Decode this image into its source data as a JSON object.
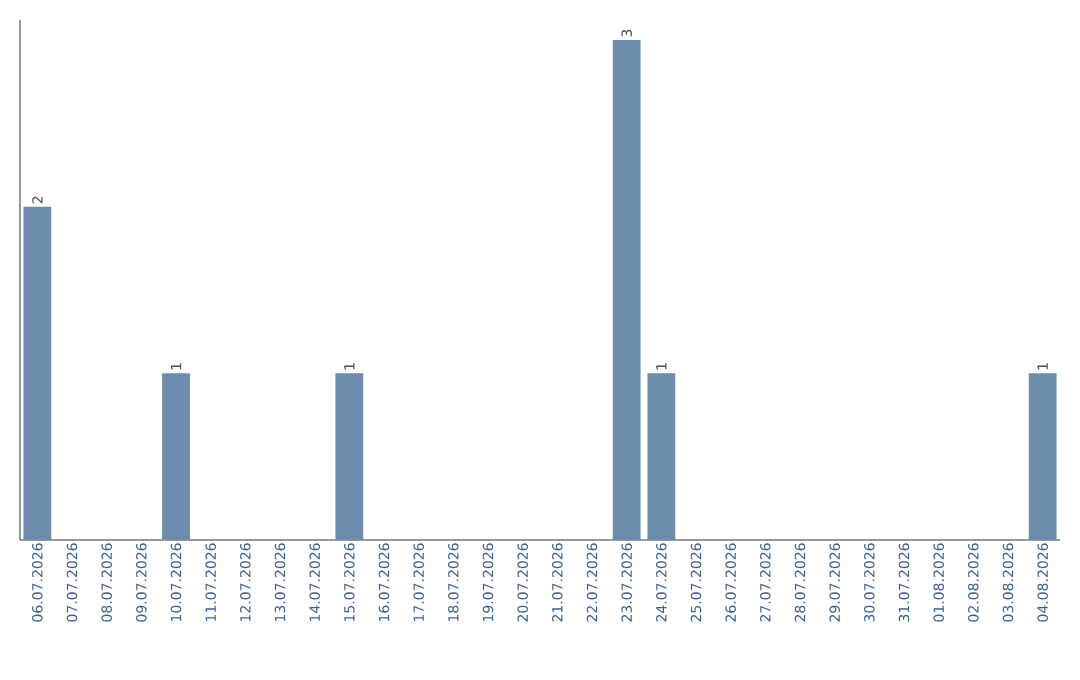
{
  "chart_data": {
    "type": "bar",
    "categories": [
      "06.07.2026",
      "07.07.2026",
      "08.07.2026",
      "09.07.2026",
      "10.07.2026",
      "11.07.2026",
      "12.07.2026",
      "13.07.2026",
      "14.07.2026",
      "15.07.2026",
      "16.07.2026",
      "17.07.2026",
      "18.07.2026",
      "19.07.2026",
      "20.07.2026",
      "21.07.2026",
      "22.07.2026",
      "23.07.2026",
      "24.07.2026",
      "25.07.2026",
      "26.07.2026",
      "27.07.2026",
      "28.07.2026",
      "29.07.2026",
      "30.07.2026",
      "31.07.2026",
      "01.08.2026",
      "02.08.2026",
      "03.08.2026",
      "04.08.2026"
    ],
    "values": [
      2,
      0,
      0,
      0,
      1,
      0,
      0,
      0,
      0,
      1,
      0,
      0,
      0,
      0,
      0,
      0,
      0,
      3,
      1,
      0,
      0,
      0,
      0,
      0,
      0,
      0,
      0,
      0,
      0,
      1
    ],
    "value_labels": [
      "2",
      null,
      null,
      null,
      "1",
      null,
      null,
      null,
      null,
      "1",
      null,
      null,
      null,
      null,
      null,
      null,
      null,
      "3",
      "1",
      null,
      null,
      null,
      null,
      null,
      null,
      null,
      null,
      null,
      null,
      "1"
    ],
    "color": "#6b8cad",
    "ylim": [
      0,
      3.12
    ],
    "tick_labels": "x",
    "grid": false
  }
}
